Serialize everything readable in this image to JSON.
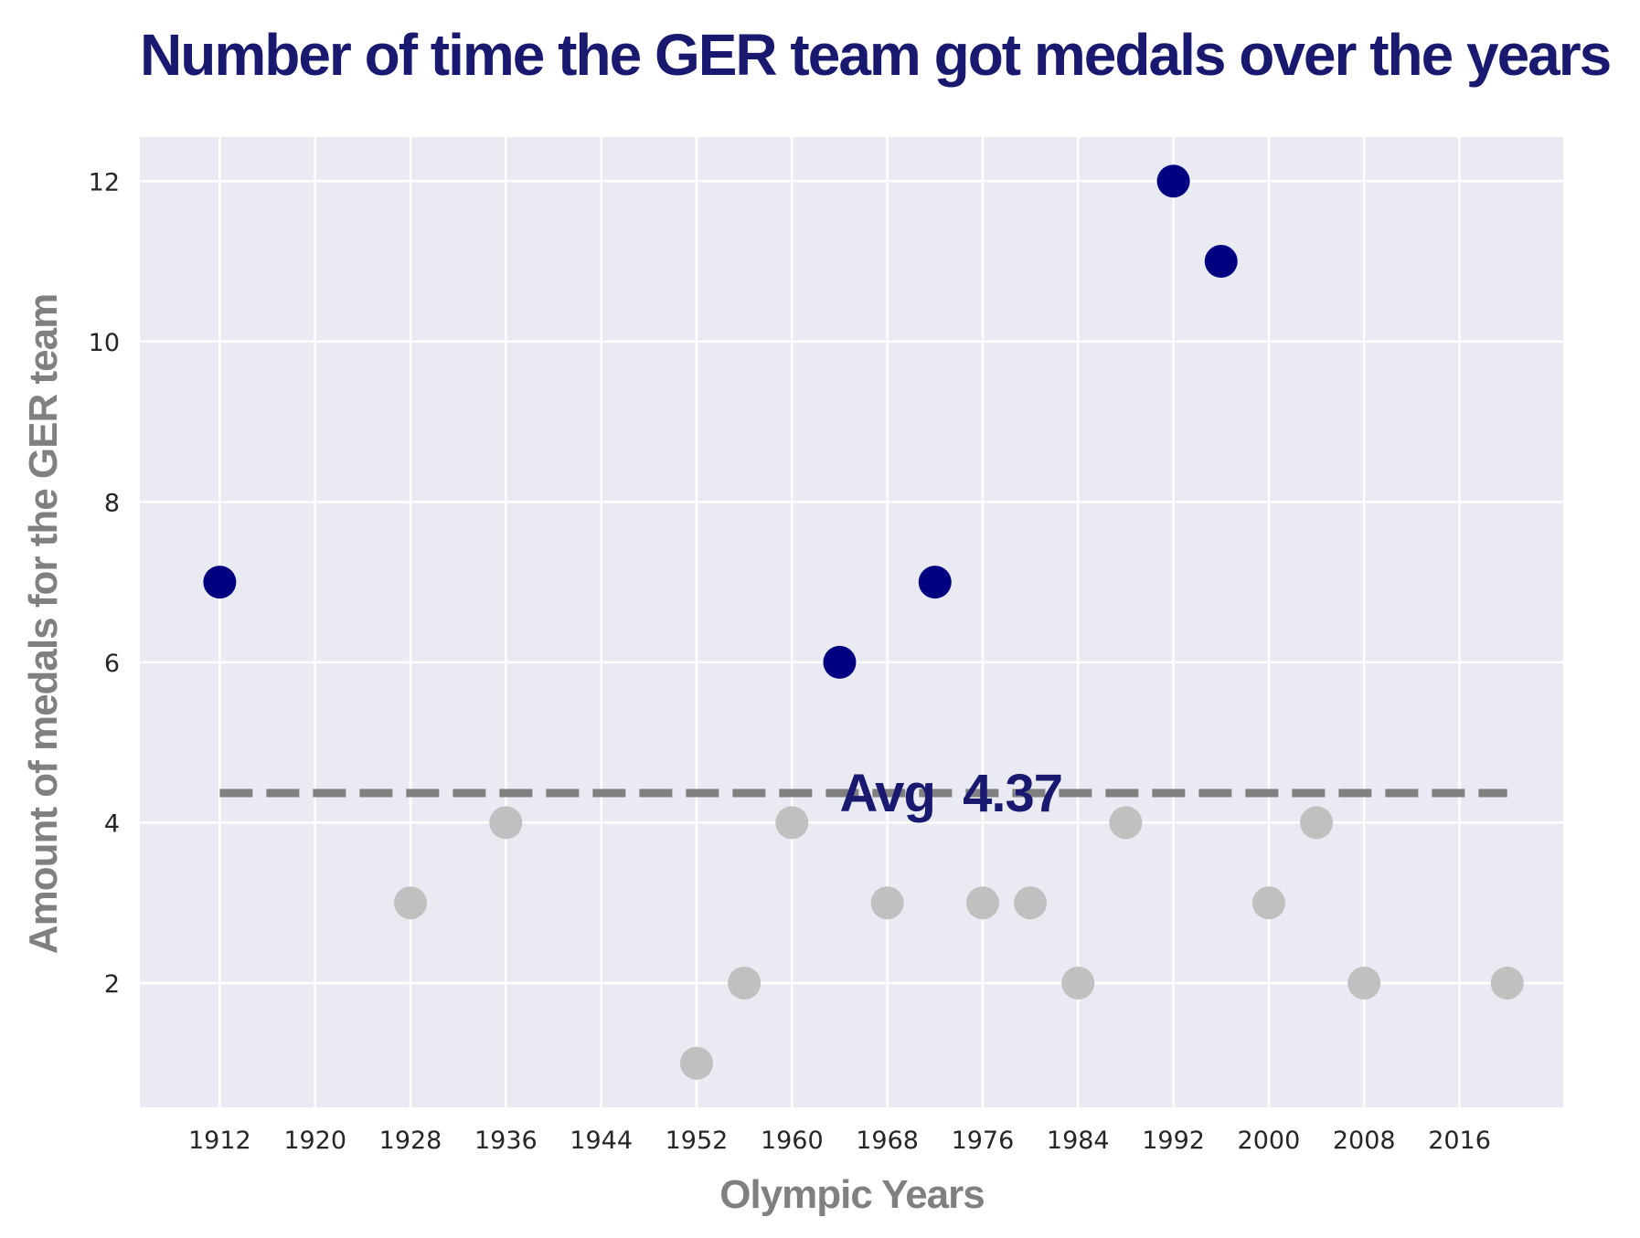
{
  "chart_data": {
    "type": "scatter",
    "title": "Number of time the GER team got medals over the years",
    "xlabel": "Olympic Years",
    "ylabel": "Amount of medals for the GER team",
    "xlim": [
      1905.3,
      2024.7
    ],
    "ylim": [
      0.45,
      12.55
    ],
    "x_ticks": [
      1912,
      1920,
      1928,
      1936,
      1944,
      1952,
      1960,
      1968,
      1976,
      1984,
      1992,
      2000,
      2008,
      2016
    ],
    "y_ticks": [
      2,
      4,
      6,
      8,
      10,
      12
    ],
    "grid": true,
    "series": [
      {
        "role": "above-average",
        "color": "#000080",
        "points": [
          {
            "x": 1912,
            "y": 7
          },
          {
            "x": 1964,
            "y": 6
          },
          {
            "x": 1972,
            "y": 7
          },
          {
            "x": 1992,
            "y": 12
          },
          {
            "x": 1996,
            "y": 11
          }
        ]
      },
      {
        "role": "below-average",
        "color": "#c0c0c0",
        "points": [
          {
            "x": 1928,
            "y": 3
          },
          {
            "x": 1936,
            "y": 4
          },
          {
            "x": 1952,
            "y": 1
          },
          {
            "x": 1956,
            "y": 2
          },
          {
            "x": 1960,
            "y": 4
          },
          {
            "x": 1968,
            "y": 3
          },
          {
            "x": 1976,
            "y": 3
          },
          {
            "x": 1980,
            "y": 3
          },
          {
            "x": 1984,
            "y": 2
          },
          {
            "x": 1988,
            "y": 4
          },
          {
            "x": 2000,
            "y": 3
          },
          {
            "x": 2004,
            "y": 4
          },
          {
            "x": 2008,
            "y": 2
          },
          {
            "x": 2020,
            "y": 2
          }
        ]
      }
    ],
    "average": {
      "value": 4.37,
      "x_start": 1912,
      "x_end": 2020,
      "label": "Avg  4.37",
      "label_x": 1964,
      "line_color": "#808080",
      "label_color": "#191970"
    }
  },
  "colors": {
    "title": "#191970",
    "axis_label": "#808080",
    "plot_background": "#eaeaf2",
    "grid": "#ffffff",
    "tick_text": "#262626"
  }
}
